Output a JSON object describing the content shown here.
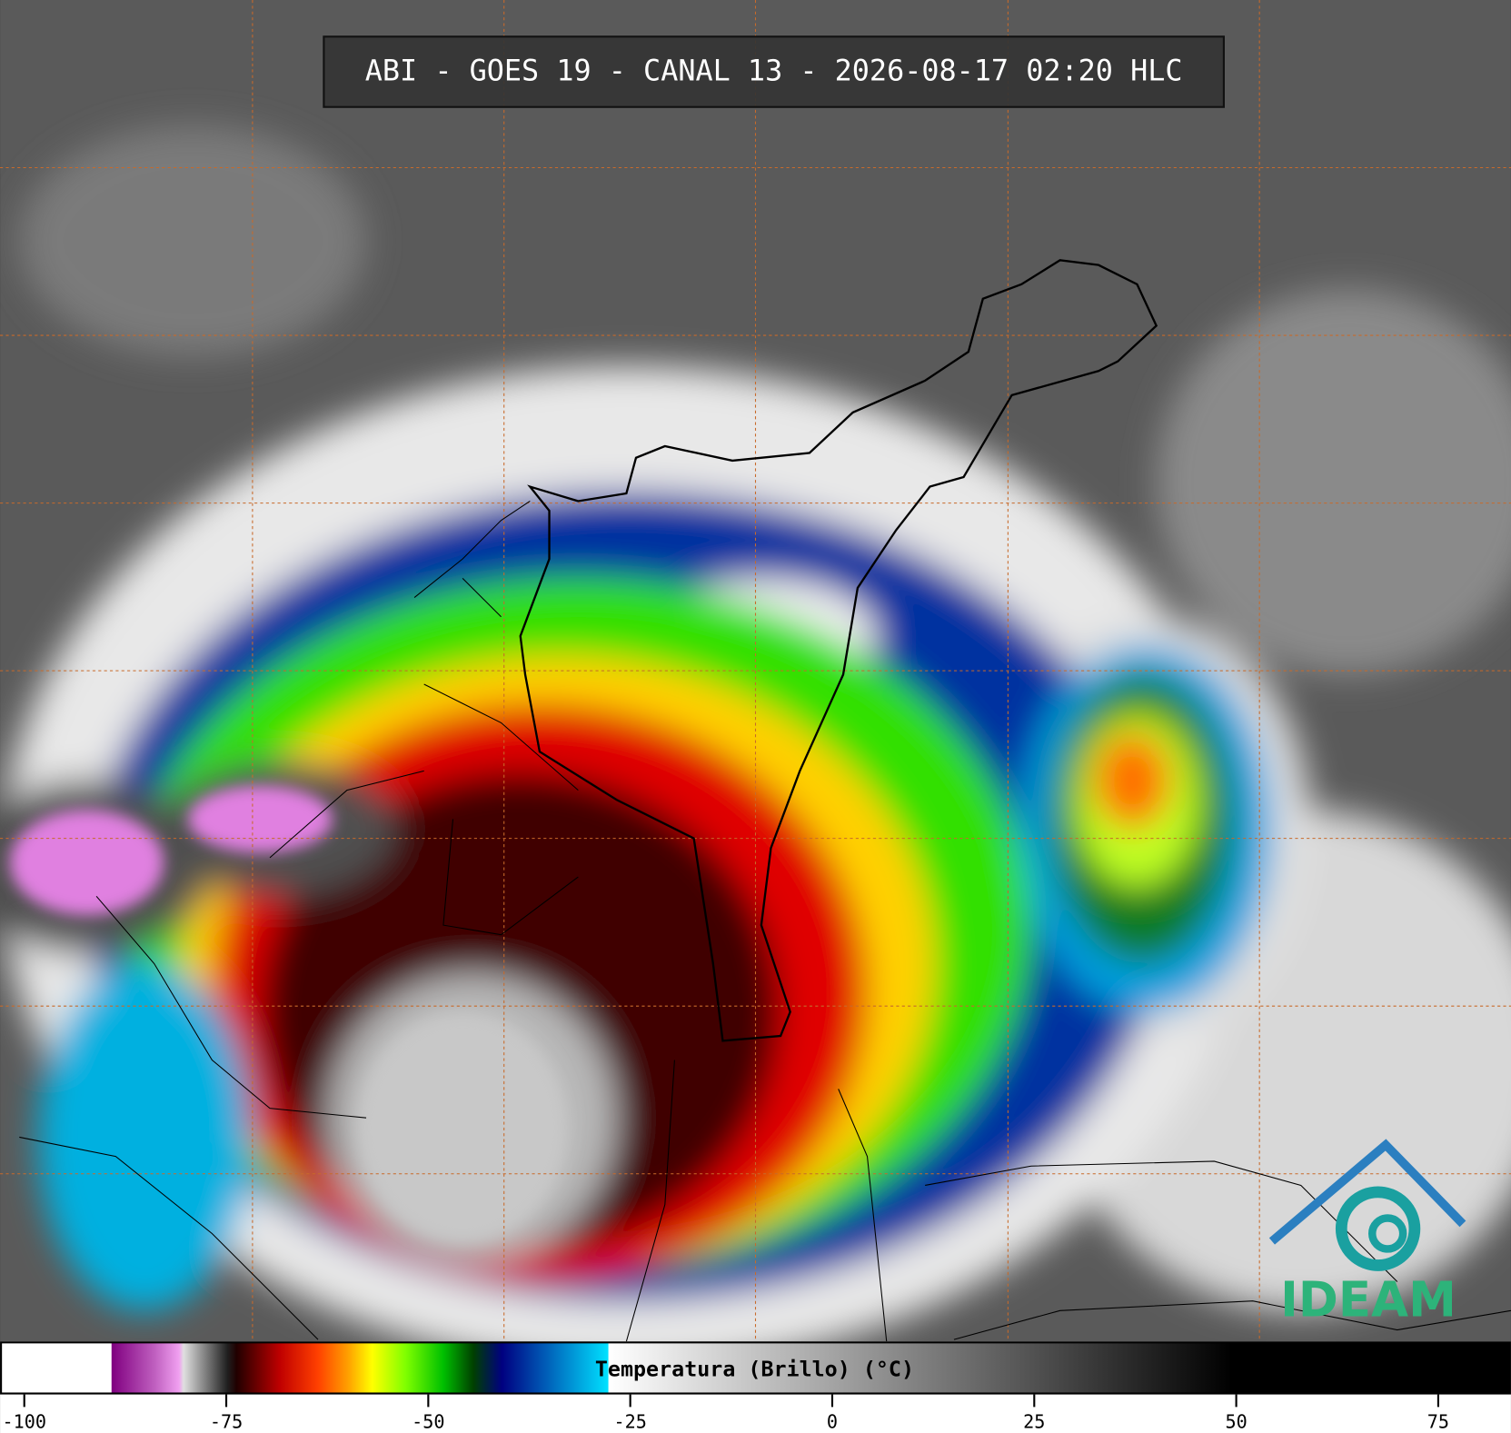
{
  "header": {
    "title": "ABI - GOES 19 - CANAL 13 - 2026-08-17 02:20 HLC"
  },
  "colorbar": {
    "label": "Temperatura (Brillo) (°C)",
    "lim": [
      -103,
      84
    ],
    "ticks": [
      -100,
      -75,
      -50,
      -25,
      0,
      25,
      50,
      75
    ]
  },
  "logo": {
    "text": "IDEAM"
  }
}
